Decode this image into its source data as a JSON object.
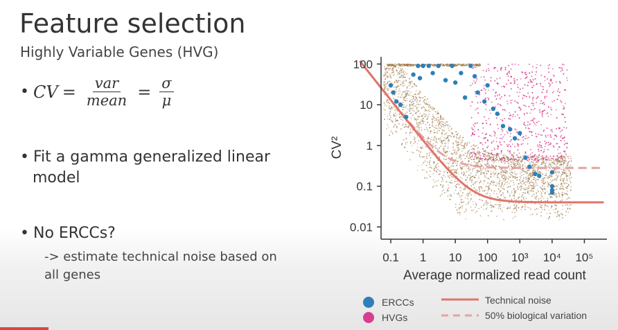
{
  "slide": {
    "title": "Feature selection",
    "subtitle": "Highly Variable Genes (HVG)",
    "formula": {
      "lhs": "CV",
      "frac1_num": "var",
      "frac1_den": "mean",
      "frac2_num": "σ",
      "frac2_den": "μ",
      "equals": "="
    },
    "bullet2_line1": "Fit a gamma generalized linear",
    "bullet2_line2": "model",
    "bullet3": "No ERCCs?",
    "sub_line1": "-> estimate technical noise based on",
    "sub_line2": "all genes",
    "bullet_char": "•"
  },
  "chart_data": {
    "type": "scatter",
    "title": "",
    "xlabel": "Average normalized read count",
    "ylabel": "CV²",
    "x_scale": "log",
    "y_scale": "log",
    "xlim": [
      0.05,
      500000
    ],
    "ylim": [
      0.005,
      150
    ],
    "x_ticks": [
      {
        "value": 0.1,
        "label": "0.1"
      },
      {
        "value": 1,
        "label": "1"
      },
      {
        "value": 10,
        "label": "10"
      },
      {
        "value": 100,
        "label": "100"
      },
      {
        "value": 1000,
        "label": "10³"
      },
      {
        "value": 10000,
        "label": "10⁴"
      },
      {
        "value": 100000,
        "label": "10⁵"
      }
    ],
    "y_ticks": [
      {
        "value": 100,
        "label": "100"
      },
      {
        "value": 10,
        "label": "10"
      },
      {
        "value": 1,
        "label": "1"
      },
      {
        "value": 0.1,
        "label": "0.1"
      },
      {
        "value": 0.01,
        "label": "0.01"
      }
    ],
    "series": [
      {
        "name": "ERCCs",
        "color": "#2e7fb8",
        "points": [
          [
            0.1,
            30
          ],
          [
            0.12,
            20
          ],
          [
            0.15,
            12
          ],
          [
            0.2,
            10
          ],
          [
            0.3,
            5
          ],
          [
            0.5,
            55
          ],
          [
            0.7,
            90
          ],
          [
            0.8,
            45
          ],
          [
            1,
            90
          ],
          [
            1.5,
            90
          ],
          [
            2,
            60
          ],
          [
            3,
            90
          ],
          [
            5,
            40
          ],
          [
            8,
            90
          ],
          [
            10,
            35
          ],
          [
            15,
            60
          ],
          [
            20,
            15
          ],
          [
            30,
            90
          ],
          [
            40,
            50
          ],
          [
            50,
            20
          ],
          [
            80,
            12
          ],
          [
            100,
            30
          ],
          [
            150,
            8
          ],
          [
            200,
            6
          ],
          [
            300,
            3
          ],
          [
            500,
            2.5
          ],
          [
            700,
            1.5
          ],
          [
            1000,
            2
          ],
          [
            1500,
            0.5
          ],
          [
            2000,
            0.3
          ],
          [
            3000,
            0.2
          ],
          [
            4000,
            0.18
          ],
          [
            10000,
            0.22
          ],
          [
            10000,
            0.1
          ],
          [
            10000,
            0.08
          ],
          [
            10000,
            0.07
          ]
        ]
      },
      {
        "name": "HVGs",
        "color": "#d63f8f",
        "points": []
      }
    ],
    "lines": [
      {
        "name": "Technical noise",
        "color": "#e0746a",
        "style": "solid"
      },
      {
        "name": "50% biological variation",
        "color": "#e8a0a4",
        "style": "dashed"
      }
    ],
    "legend_position": "bottom",
    "grid": false
  },
  "colors": {
    "background_points": "#a07c4e",
    "hvg": "#d63f8f",
    "ercc": "#2e7fb8",
    "technical_line": "#e0746a",
    "bio_line": "#e8a0a4"
  }
}
